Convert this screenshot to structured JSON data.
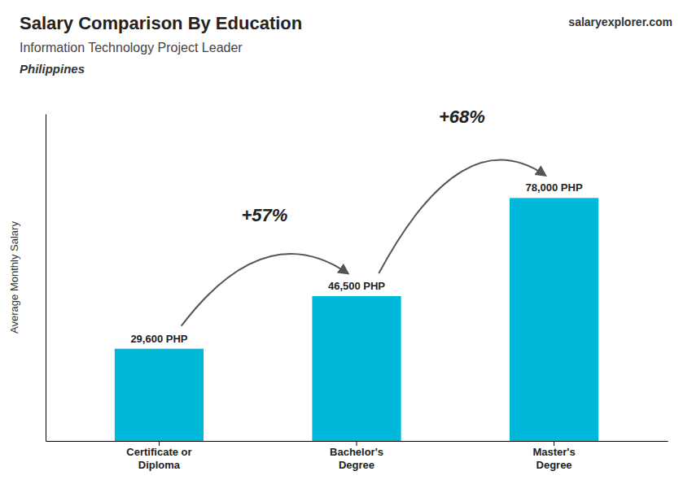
{
  "chart_data": {
    "type": "bar",
    "title": "Salary Comparison By Education",
    "subtitle": "Information Technology Project Leader",
    "y_label": "Average Monthly Salary",
    "annotations": [
      "Philippines",
      "+57%",
      "+68%",
      "salaryexplorer.com"
    ],
    "categories": [
      "Certificate or\nDiploma",
      "Bachelor's\nDegree",
      "Master's\nDegree"
    ],
    "values": [
      29600,
      46500,
      78000
    ],
    "value_labels": [
      "29,600 PHP",
      "46,500 PHP",
      "78,000 PHP"
    ],
    "data_labels": true,
    "color": "#00b8d9",
    "ylim": [
      0,
      105000
    ],
    "tick_labels": "x",
    "grid": false
  }
}
